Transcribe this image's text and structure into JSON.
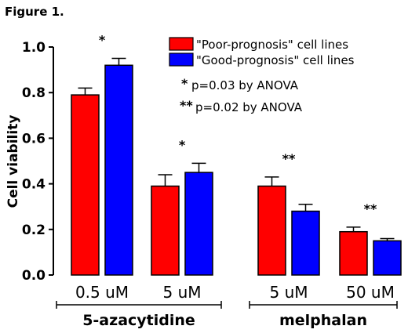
{
  "figure_label": "Figure 1.",
  "colors": {
    "poor": "#ff0000",
    "good": "#0000ff"
  },
  "chart_data": {
    "type": "bar",
    "ylabel": "Cell viability",
    "ylim": [
      0,
      1.0
    ],
    "yticks": [
      "0.0",
      "0.2",
      "0.4",
      "0.6",
      "0.8",
      "1.0"
    ],
    "categories": [
      "0.5 uM",
      "5 uM",
      "5 uM",
      "50 uM"
    ],
    "groups": [
      {
        "name": "5-azacytidine",
        "categories": [
          "0.5 uM",
          "5 uM"
        ]
      },
      {
        "name": "melphalan",
        "categories": [
          "5 uM",
          "50 uM"
        ]
      }
    ],
    "series": [
      {
        "name": "\"Poor-prognosis\" cell lines",
        "color": "#ff0000",
        "values": [
          0.79,
          0.39,
          0.39,
          0.19
        ],
        "errors": [
          0.03,
          0.05,
          0.04,
          0.02
        ]
      },
      {
        "name": "\"Good-prognosis\" cell lines",
        "color": "#0000ff",
        "values": [
          0.92,
          0.45,
          0.28,
          0.15
        ],
        "errors": [
          0.03,
          0.04,
          0.03,
          0.01
        ]
      }
    ],
    "significance": [
      "*",
      "*",
      "**",
      "**"
    ],
    "notes": [
      {
        "mark": "*",
        "text": "p=0.03 by ANOVA"
      },
      {
        "mark": "**",
        "text": "p=0.02 by ANOVA"
      }
    ],
    "legend_position": "top-right",
    "grid": false
  }
}
